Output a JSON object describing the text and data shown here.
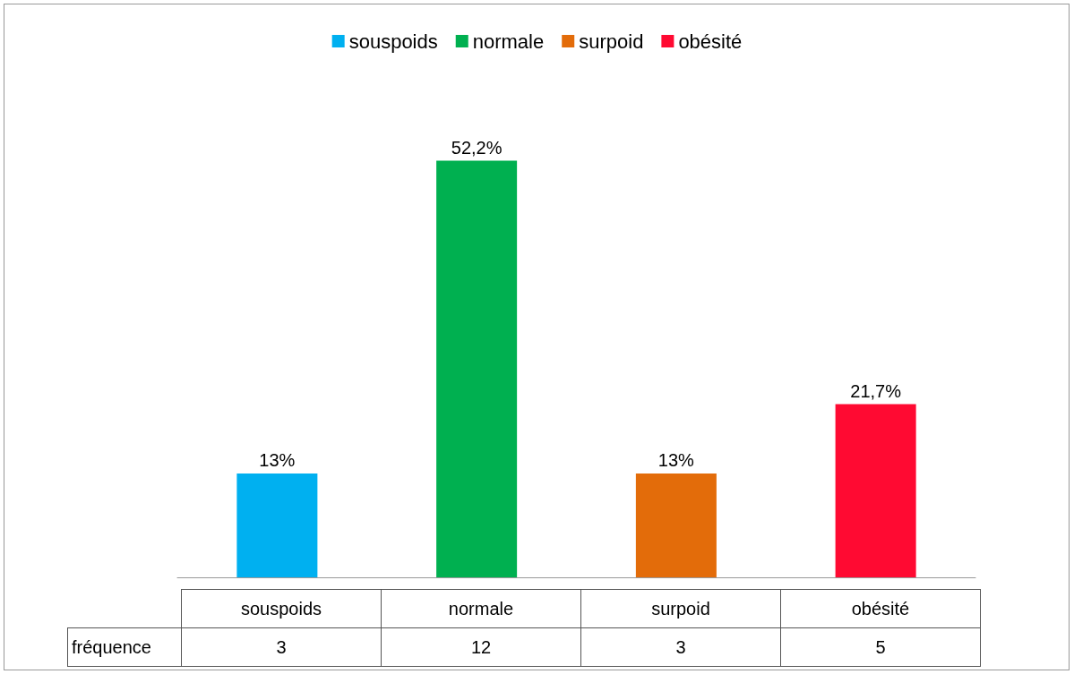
{
  "chart_data": {
    "type": "bar",
    "categories": [
      "souspoids",
      "normale",
      "surpoid",
      "obésité"
    ],
    "series": [
      {
        "name": "souspoids",
        "color": "#00b0f0",
        "values": [
          13,
          null,
          null,
          null
        ],
        "value_labels": [
          "13%",
          null,
          null,
          null
        ]
      },
      {
        "name": "normale",
        "color": "#00b050",
        "values": [
          null,
          52.2,
          null,
          null
        ],
        "value_labels": [
          null,
          "52,2%",
          null,
          null
        ]
      },
      {
        "name": "surpoid",
        "color": "#e36c0a",
        "values": [
          null,
          null,
          13,
          null
        ],
        "value_labels": [
          null,
          null,
          "13%",
          null
        ]
      },
      {
        "name": "obésité",
        "color": "#ff0a32",
        "values": [
          null,
          null,
          null,
          21.7
        ],
        "value_labels": [
          null,
          null,
          null,
          "21,7%"
        ]
      }
    ],
    "stacked": true,
    "legend": "top",
    "annotations": [
      "fréquence",
      "3",
      "12",
      "3",
      "5"
    ]
  }
}
